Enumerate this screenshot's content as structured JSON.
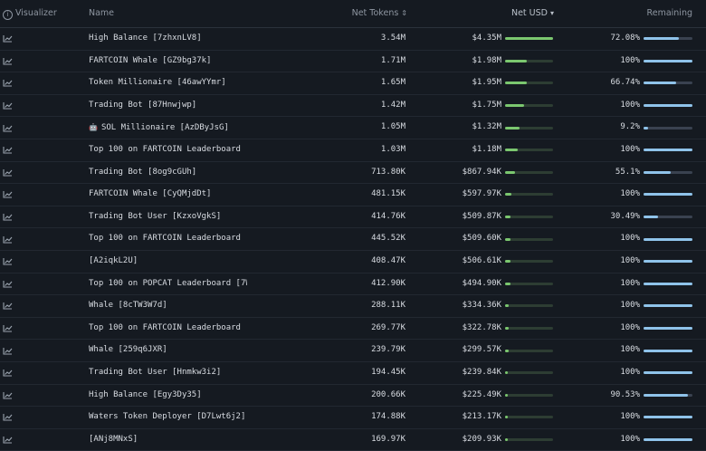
{
  "header": {
    "visualizer": "Visualizer",
    "name": "Name",
    "net_tokens": "Net Tokens",
    "net_usd": "Net USD",
    "remaining": "Remaining"
  },
  "colors": {
    "usd_bar": "#7bc76f",
    "remaining_bar": "#8fc3ea",
    "background": "#151a21"
  },
  "rows": [
    {
      "name": "High Balance [7zhxnLV8]",
      "tokens": "3.54M",
      "usd": "$4.35M",
      "usd_share": 1.0,
      "remaining": "72.08%",
      "remaining_frac": 0.7208
    },
    {
      "name": "FARTCOIN Whale [GZ9bg37k]",
      "tokens": "1.71M",
      "usd": "$1.98M",
      "usd_share": 0.455,
      "remaining": "100%",
      "remaining_frac": 1.0
    },
    {
      "name": "Token Millionaire [46awYYmr]",
      "tokens": "1.65M",
      "usd": "$1.95M",
      "usd_share": 0.448,
      "remaining": "66.74%",
      "remaining_frac": 0.6674
    },
    {
      "name": "Trading Bot [87Hnwjwp]",
      "tokens": "1.42M",
      "usd": "$1.75M",
      "usd_share": 0.402,
      "remaining": "100%",
      "remaining_frac": 1.0
    },
    {
      "name": "SOL Millionaire [AzDByJsG]",
      "robot": true,
      "tokens": "1.05M",
      "usd": "$1.32M",
      "usd_share": 0.303,
      "remaining": "9.2%",
      "remaining_frac": 0.092
    },
    {
      "name": "Top 100 on FARTCOIN Leaderboard […",
      "tokens": "1.03M",
      "usd": "$1.18M",
      "usd_share": 0.271,
      "remaining": "100%",
      "remaining_frac": 1.0
    },
    {
      "name": "Trading Bot [8og9cGUh]",
      "tokens": "713.80K",
      "usd": "$867.94K",
      "usd_share": 0.2,
      "remaining": "55.1%",
      "remaining_frac": 0.551
    },
    {
      "name": "FARTCOIN Whale [CyQMjdDt]",
      "tokens": "481.15K",
      "usd": "$597.97K",
      "usd_share": 0.137,
      "remaining": "100%",
      "remaining_frac": 1.0
    },
    {
      "name": "Trading Bot User [KzxoVgkS]",
      "tokens": "414.76K",
      "usd": "$509.87K",
      "usd_share": 0.117,
      "remaining": "30.49%",
      "remaining_frac": 0.3049
    },
    {
      "name": "Top 100 on FARTCOIN Leaderboard […",
      "tokens": "445.52K",
      "usd": "$509.60K",
      "usd_share": 0.117,
      "remaining": "100%",
      "remaining_frac": 1.0
    },
    {
      "name": "[A2iqkL2U]",
      "tokens": "408.47K",
      "usd": "$506.61K",
      "usd_share": 0.116,
      "remaining": "100%",
      "remaining_frac": 1.0
    },
    {
      "name": "Top 100 on POPCAT Leaderboard [7W…",
      "tokens": "412.90K",
      "usd": "$494.90K",
      "usd_share": 0.114,
      "remaining": "100%",
      "remaining_frac": 1.0
    },
    {
      "name": "Whale [8cTW3W7d]",
      "tokens": "288.11K",
      "usd": "$334.36K",
      "usd_share": 0.077,
      "remaining": "100%",
      "remaining_frac": 1.0
    },
    {
      "name": "Top 100 on FARTCOIN Leaderboard […",
      "tokens": "269.77K",
      "usd": "$322.78K",
      "usd_share": 0.074,
      "remaining": "100%",
      "remaining_frac": 1.0
    },
    {
      "name": "Whale [259q6JXR]",
      "tokens": "239.79K",
      "usd": "$299.57K",
      "usd_share": 0.069,
      "remaining": "100%",
      "remaining_frac": 1.0
    },
    {
      "name": "Trading Bot User [Hnmkw3i2]",
      "tokens": "194.45K",
      "usd": "$239.84K",
      "usd_share": 0.055,
      "remaining": "100%",
      "remaining_frac": 1.0
    },
    {
      "name": "High Balance [Egy3Dy35]",
      "tokens": "200.66K",
      "usd": "$225.49K",
      "usd_share": 0.052,
      "remaining": "90.53%",
      "remaining_frac": 0.9053
    },
    {
      "name": "Waters Token Deployer [D7Lwt6j2]",
      "tokens": "174.88K",
      "usd": "$213.17K",
      "usd_share": 0.049,
      "remaining": "100%",
      "remaining_frac": 1.0
    },
    {
      "name": "[ANj8MNxS]",
      "tokens": "169.97K",
      "usd": "$209.93K",
      "usd_share": 0.048,
      "remaining": "100%",
      "remaining_frac": 1.0
    }
  ]
}
